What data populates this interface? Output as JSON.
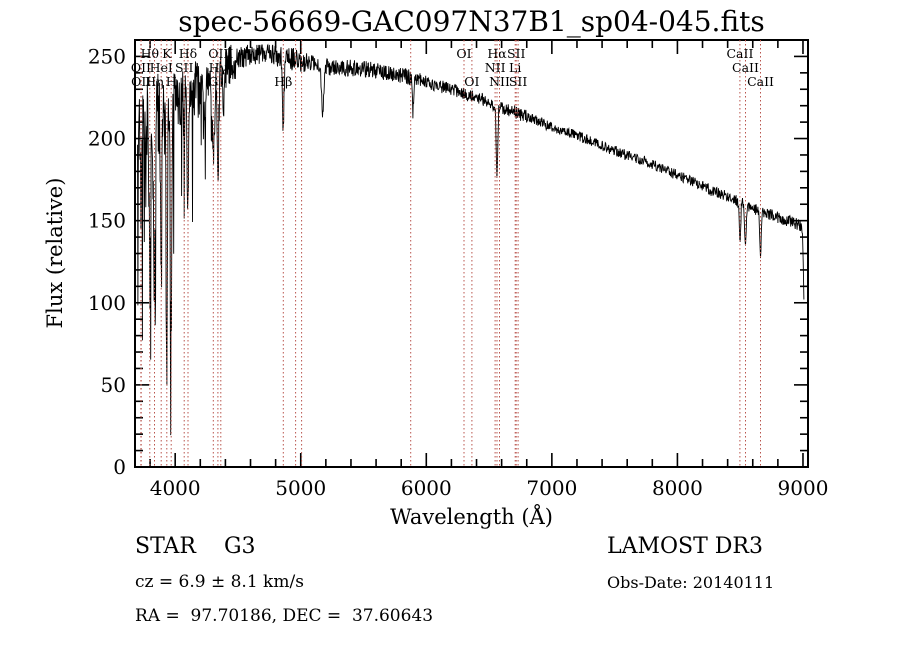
{
  "title": "spec-56669-GAC097N37B1_sp04-045.fits",
  "footer": {
    "class_label": "STAR    G3",
    "survey": "LAMOST DR3",
    "cz": "cz = 6.9 ± 8.1 km/s",
    "obs_date": "Obs-Date: 20140111",
    "coords": "RA =  97.70186, DEC =  37.60643"
  },
  "chart_data": {
    "type": "line",
    "title": "spec-56669-GAC097N37B1_sp04-045.fits",
    "xlabel": "Wavelength (Å)",
    "ylabel": "Flux (relative)",
    "xlim": [
      3680,
      9040
    ],
    "ylim": [
      0,
      260
    ],
    "xticks": [
      4000,
      5000,
      6000,
      7000,
      8000,
      9000
    ],
    "yticks": [
      0,
      50,
      100,
      150,
      200,
      250
    ],
    "x_minor_step": 200,
    "y_minor_step": 10,
    "grid": false,
    "legend": "none",
    "curve_color": "#000000",
    "marker_color": "#b9544c",
    "annotation_color": "#6b2320",
    "annotation_rows_y": [
      58,
      72,
      86
    ],
    "seed": 56669,
    "annotations": [
      {
        "label": "Hθ",
        "wl": 3798,
        "row": 1
      },
      {
        "label": "K",
        "wl": 3933,
        "row": 1
      },
      {
        "label": "Hδ",
        "wl": 4102,
        "row": 1
      },
      {
        "label": "OIII",
        "wl": 4363,
        "row": 1
      },
      {
        "label": "OI",
        "wl": 6300,
        "row": 1
      },
      {
        "label": "Hα",
        "wl": 6563,
        "row": 1
      },
      {
        "label": "SII",
        "wl": 6716,
        "row": 1
      },
      {
        "label": "CaII",
        "wl": 8498,
        "row": 1
      },
      {
        "label": "OII",
        "wl": 3727,
        "row": 2
      },
      {
        "label": "HeI",
        "wl": 3889,
        "row": 2
      },
      {
        "label": "SII",
        "wl": 4072,
        "row": 2
      },
      {
        "label": "Hγ",
        "wl": 4340,
        "row": 2
      },
      {
        "label": "NII",
        "wl": 6548,
        "row": 2
      },
      {
        "label": "Li",
        "wl": 6708,
        "row": 2
      },
      {
        "label": "CaII",
        "wl": 8542,
        "row": 2
      },
      {
        "label": "OII",
        "wl": 3729,
        "row": 3
      },
      {
        "label": "Hη",
        "wl": 3835,
        "row": 3
      },
      {
        "label": "H",
        "wl": 3968,
        "row": 3
      },
      {
        "label": "G",
        "wl": 4304,
        "row": 3
      },
      {
        "label": "Hβ",
        "wl": 4861,
        "row": 3
      },
      {
        "label": "OI",
        "wl": 6363,
        "row": 3
      },
      {
        "label": "NII",
        "wl": 6583,
        "row": 3
      },
      {
        "label": "SII",
        "wl": 6731,
        "row": 3
      },
      {
        "label": "CaII",
        "wl": 8662,
        "row": 3
      }
    ],
    "extra_lines": [
      4959,
      5007,
      5876
    ],
    "continuum": [
      [
        3700,
        198
      ],
      [
        3780,
        208
      ],
      [
        3860,
        215
      ],
      [
        3950,
        220
      ],
      [
        4050,
        225
      ],
      [
        4150,
        229
      ],
      [
        4250,
        233
      ],
      [
        4350,
        239
      ],
      [
        4450,
        246
      ],
      [
        4550,
        250
      ],
      [
        4650,
        252
      ],
      [
        4750,
        252
      ],
      [
        4850,
        250
      ],
      [
        4950,
        248
      ],
      [
        5050,
        246
      ],
      [
        5150,
        245
      ],
      [
        5250,
        243
      ],
      [
        5400,
        243
      ],
      [
        5550,
        242
      ],
      [
        5700,
        240
      ],
      [
        5850,
        238
      ],
      [
        5950,
        236
      ],
      [
        6050,
        233
      ],
      [
        6150,
        231
      ],
      [
        6250,
        229
      ],
      [
        6350,
        226
      ],
      [
        6450,
        224
      ],
      [
        6563,
        220
      ],
      [
        6700,
        216
      ],
      [
        6850,
        212
      ],
      [
        7000,
        207
      ],
      [
        7150,
        203
      ],
      [
        7300,
        199
      ],
      [
        7450,
        194
      ],
      [
        7600,
        190
      ],
      [
        7750,
        186
      ],
      [
        7900,
        181
      ],
      [
        8050,
        176
      ],
      [
        8200,
        171
      ],
      [
        8350,
        166
      ],
      [
        8500,
        161
      ],
      [
        8650,
        156
      ],
      [
        8800,
        152
      ],
      [
        8950,
        148
      ],
      [
        9000,
        146
      ]
    ],
    "absorption_lines": [
      {
        "wl": 3727,
        "depth": 45,
        "sigma": 4
      },
      {
        "wl": 3798,
        "depth": 105,
        "sigma": 5
      },
      {
        "wl": 3835,
        "depth": 112,
        "sigma": 5
      },
      {
        "wl": 3889,
        "depth": 105,
        "sigma": 5
      },
      {
        "wl": 3933,
        "depth": 148,
        "sigma": 6
      },
      {
        "wl": 3968,
        "depth": 138,
        "sigma": 6
      },
      {
        "wl": 4072,
        "depth": 28,
        "sigma": 4
      },
      {
        "wl": 4102,
        "depth": 72,
        "sigma": 6
      },
      {
        "wl": 4227,
        "depth": 30,
        "sigma": 4
      },
      {
        "wl": 4304,
        "depth": 48,
        "sigma": 9
      },
      {
        "wl": 4340,
        "depth": 66,
        "sigma": 6
      },
      {
        "wl": 4383,
        "depth": 38,
        "sigma": 4
      },
      {
        "wl": 4861,
        "depth": 44,
        "sigma": 6
      },
      {
        "wl": 5175,
        "depth": 30,
        "sigma": 9
      },
      {
        "wl": 5893,
        "depth": 20,
        "sigma": 6
      },
      {
        "wl": 6563,
        "depth": 46,
        "sigma": 6
      },
      {
        "wl": 8498,
        "depth": 22,
        "sigma": 6
      },
      {
        "wl": 8542,
        "depth": 28,
        "sigma": 6
      },
      {
        "wl": 8662,
        "depth": 25,
        "sigma": 6
      }
    ],
    "noise_segments": [
      [
        3700,
        3950,
        26
      ],
      [
        3950,
        4200,
        18
      ],
      [
        4200,
        4500,
        12
      ],
      [
        4500,
        5050,
        7
      ],
      [
        5050,
        5900,
        5
      ],
      [
        5900,
        6800,
        4
      ],
      [
        6800,
        8200,
        3.2
      ],
      [
        8200,
        9010,
        3.5
      ]
    ],
    "spike_segments": [
      [
        3700,
        3920,
        140,
        0.12
      ],
      [
        3920,
        4150,
        100,
        0.08
      ],
      [
        4150,
        4480,
        60,
        0.05
      ]
    ],
    "tail": [
      [
        8996,
        142
      ],
      [
        9002,
        125
      ],
      [
        9007,
        102
      ]
    ]
  }
}
